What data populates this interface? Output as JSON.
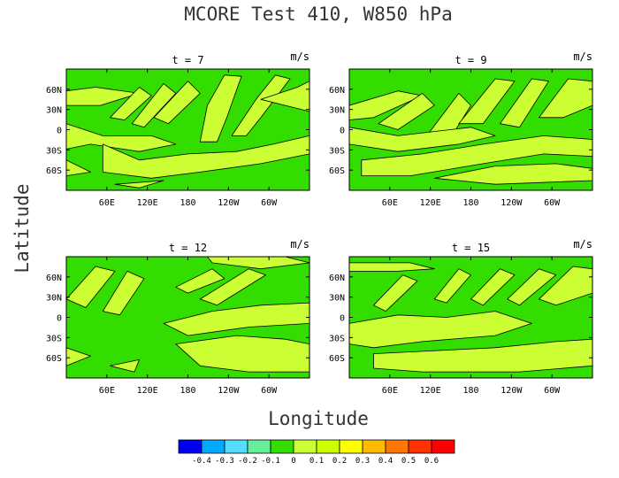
{
  "title": "MCORE Test 410, W850 hPa",
  "xlabel": "Longitude",
  "ylabel": "Latitude",
  "colors": {
    "green": "#33dd00",
    "yellow": "#ccff33",
    "frame": "#000000"
  },
  "chart_data": [
    {
      "type": "heatmap",
      "title": "t = 7",
      "units": "m/s",
      "x_ticks": [
        "60E",
        "120E",
        "180",
        "120W",
        "60W"
      ],
      "y_ticks": [
        "60N",
        "30N",
        "0",
        "30S",
        "60S"
      ],
      "xlim": [
        0,
        360
      ],
      "ylim": [
        -90,
        90
      ],
      "contour_levels": [
        0
      ],
      "background_level": 0,
      "positive_level": 0.1
    },
    {
      "type": "heatmap",
      "title": "t = 9",
      "units": "m/s",
      "x_ticks": [
        "60E",
        "120E",
        "180",
        "120W",
        "60W"
      ],
      "y_ticks": [
        "60N",
        "30N",
        "0",
        "30S",
        "60S"
      ],
      "xlim": [
        0,
        360
      ],
      "ylim": [
        -90,
        90
      ],
      "contour_levels": [
        0
      ],
      "background_level": 0,
      "positive_level": 0.1
    },
    {
      "type": "heatmap",
      "title": "t = 12",
      "units": "m/s",
      "x_ticks": [
        "60E",
        "120E",
        "180",
        "120W",
        "60W"
      ],
      "y_ticks": [
        "60N",
        "30N",
        "0",
        "30S",
        "60S"
      ],
      "xlim": [
        0,
        360
      ],
      "ylim": [
        -90,
        90
      ],
      "contour_levels": [
        0
      ],
      "background_level": 0,
      "positive_level": 0.1
    },
    {
      "type": "heatmap",
      "title": "t = 15",
      "units": "m/s",
      "x_ticks": [
        "60E",
        "120E",
        "180",
        "120W",
        "60W"
      ],
      "y_ticks": [
        "60N",
        "30N",
        "0",
        "30S",
        "60S"
      ],
      "xlim": [
        0,
        360
      ],
      "ylim": [
        -90,
        90
      ],
      "contour_levels": [
        0
      ],
      "background_level": 0,
      "positive_level": 0.1
    }
  ],
  "colorbar": {
    "labels": [
      "-0.4",
      "-0.3",
      "-0.2",
      "-0.1",
      "0",
      "0.1",
      "0.2",
      "0.3",
      "0.4",
      "0.5",
      "0.6"
    ],
    "colors": [
      "#0000ee",
      "#00aaff",
      "#55ddff",
      "#66ee99",
      "#33dd00",
      "#ccff33",
      "#ccff00",
      "#ffff00",
      "#ffbb00",
      "#ff7700",
      "#ff3300",
      "#ff0000"
    ]
  }
}
